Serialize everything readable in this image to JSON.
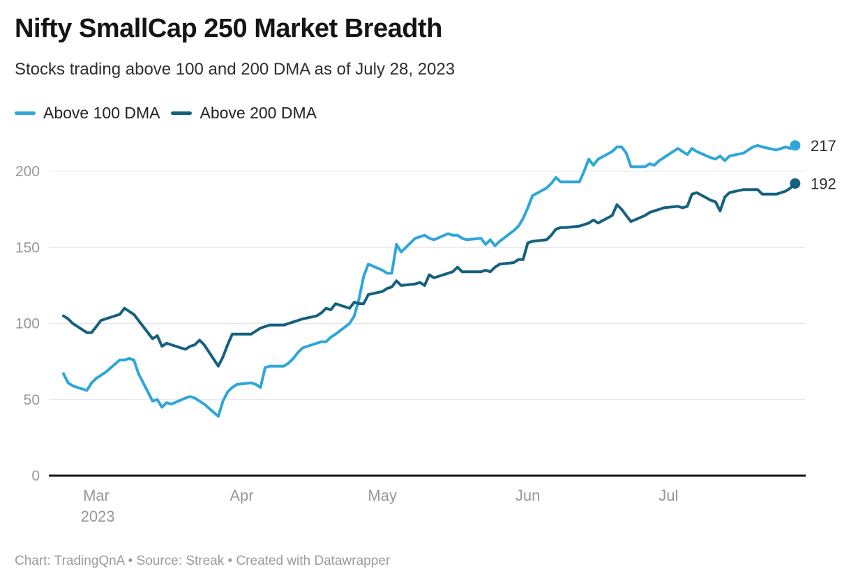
{
  "header": {
    "title": "Nifty SmallCap 250 Market Breadth",
    "subtitle": "Stocks trading above 100 and 200 DMA as of July 28, 2023"
  },
  "legend": [
    {
      "label": "Above 100 DMA",
      "color": "#2fa6d8"
    },
    {
      "label": "Above 200 DMA",
      "color": "#15607e"
    }
  ],
  "footer": {
    "text": "Chart: TradingQnA • Source: Streak • Created with Datawrapper"
  },
  "colors": {
    "above_100_dma": "#2fa6d8",
    "above_200_dma": "#15607e",
    "gridline": "#e4e4e4",
    "axis_line": "#161616",
    "tick_label": "#979797",
    "end_label": "#2b2b2b"
  },
  "chart_data": {
    "type": "line",
    "title": "Nifty SmallCap 250 Market Breadth",
    "subtitle": "Stocks trading above 100 and 200 DMA as of July 28, 2023",
    "xlabel": "",
    "ylabel": "",
    "ylim": [
      0,
      230
    ],
    "grid": "horizontal",
    "legend_position": "top-left",
    "y_ticks": [
      0,
      50,
      100,
      150,
      200
    ],
    "x_ticks": [
      {
        "label": "Mar",
        "sublabel": "2023",
        "date": "2023-03-01"
      },
      {
        "label": "Apr",
        "sublabel": "",
        "date": "2023-04-01"
      },
      {
        "label": "May",
        "sublabel": "",
        "date": "2023-05-01"
      },
      {
        "label": "Jun",
        "sublabel": "",
        "date": "2023-06-01"
      },
      {
        "label": "Jul",
        "sublabel": "",
        "date": "2023-07-01"
      }
    ],
    "dates": [
      "2023-02-22",
      "2023-02-23",
      "2023-02-24",
      "2023-02-27",
      "2023-02-28",
      "2023-03-01",
      "2023-03-02",
      "2023-03-03",
      "2023-03-06",
      "2023-03-07",
      "2023-03-08",
      "2023-03-09",
      "2023-03-10",
      "2023-03-13",
      "2023-03-14",
      "2023-03-15",
      "2023-03-16",
      "2023-03-17",
      "2023-03-20",
      "2023-03-21",
      "2023-03-22",
      "2023-03-23",
      "2023-03-24",
      "2023-03-27",
      "2023-03-28",
      "2023-03-29",
      "2023-03-30",
      "2023-03-31",
      "2023-04-03",
      "2023-04-04",
      "2023-04-05",
      "2023-04-06",
      "2023-04-07",
      "2023-04-10",
      "2023-04-11",
      "2023-04-12",
      "2023-04-13",
      "2023-04-14",
      "2023-04-17",
      "2023-04-18",
      "2023-04-19",
      "2023-04-20",
      "2023-04-21",
      "2023-04-24",
      "2023-04-25",
      "2023-04-26",
      "2023-04-27",
      "2023-04-28",
      "2023-05-01",
      "2023-05-02",
      "2023-05-03",
      "2023-05-04",
      "2023-05-05",
      "2023-05-08",
      "2023-05-09",
      "2023-05-10",
      "2023-05-11",
      "2023-05-12",
      "2023-05-15",
      "2023-05-16",
      "2023-05-17",
      "2023-05-18",
      "2023-05-19",
      "2023-05-22",
      "2023-05-23",
      "2023-05-24",
      "2023-05-25",
      "2023-05-26",
      "2023-05-29",
      "2023-05-30",
      "2023-05-31",
      "2023-06-01",
      "2023-06-02",
      "2023-06-05",
      "2023-06-06",
      "2023-06-07",
      "2023-06-08",
      "2023-06-09",
      "2023-06-12",
      "2023-06-13",
      "2023-06-14",
      "2023-06-15",
      "2023-06-16",
      "2023-06-19",
      "2023-06-20",
      "2023-06-21",
      "2023-06-22",
      "2023-06-23",
      "2023-06-26",
      "2023-06-27",
      "2023-06-28",
      "2023-06-29",
      "2023-06-30",
      "2023-07-03",
      "2023-07-04",
      "2023-07-05",
      "2023-07-06",
      "2023-07-07",
      "2023-07-10",
      "2023-07-11",
      "2023-07-12",
      "2023-07-13",
      "2023-07-14",
      "2023-07-17",
      "2023-07-18",
      "2023-07-19",
      "2023-07-20",
      "2023-07-21",
      "2023-07-24",
      "2023-07-25",
      "2023-07-26",
      "2023-07-27",
      "2023-07-28"
    ],
    "series": [
      {
        "name": "Above 100 DMA",
        "color": "#2fa6d8",
        "end_label": "217",
        "end_value": 217,
        "values": [
          67,
          61,
          59,
          56,
          61,
          64,
          66,
          68,
          76,
          76,
          77,
          76,
          67,
          49,
          50,
          45,
          48,
          47,
          51,
          52,
          51,
          49,
          47,
          39,
          49,
          55,
          58,
          60,
          61,
          60,
          58,
          71,
          72,
          72,
          74,
          77,
          81,
          84,
          87,
          88,
          88,
          91,
          93,
          100,
          105,
          116,
          131,
          139,
          135,
          133,
          133,
          152,
          147,
          156,
          157,
          158,
          156,
          155,
          159,
          158,
          158,
          156,
          155,
          156,
          152,
          155,
          151,
          154,
          161,
          164,
          169,
          176,
          184,
          189,
          192,
          196,
          193,
          193,
          193,
          200,
          208,
          204,
          208,
          213,
          216,
          216,
          212,
          203,
          203,
          205,
          204,
          207,
          209,
          215,
          213,
          211,
          215,
          213,
          209,
          208,
          210,
          207,
          210,
          212,
          214,
          216,
          217,
          216,
          214,
          215,
          216,
          215,
          217
        ]
      },
      {
        "name": "Above 200 DMA",
        "color": "#15607e",
        "end_label": "192",
        "end_value": 192,
        "values": [
          105,
          103,
          100,
          94,
          94,
          98,
          102,
          103,
          106,
          110,
          108,
          106,
          102,
          90,
          92,
          85,
          87,
          86,
          83,
          85,
          86,
          89,
          86,
          72,
          78,
          86,
          93,
          93,
          93,
          95,
          97,
          98,
          99,
          99,
          100,
          101,
          102,
          103,
          105,
          107,
          110,
          109,
          113,
          110,
          114,
          113,
          113,
          119,
          121,
          123,
          124,
          128,
          125,
          126,
          127,
          125,
          132,
          130,
          133,
          134,
          137,
          134,
          134,
          134,
          135,
          134,
          137,
          139,
          140,
          142,
          142,
          153,
          154,
          155,
          158,
          162,
          163,
          163,
          164,
          165,
          166,
          168,
          166,
          171,
          178,
          175,
          171,
          167,
          171,
          173,
          174,
          175,
          176,
          177,
          176,
          177,
          185,
          186,
          181,
          180,
          174,
          183,
          186,
          188,
          188,
          188,
          188,
          185,
          185,
          186,
          187,
          189,
          192
        ]
      }
    ]
  }
}
